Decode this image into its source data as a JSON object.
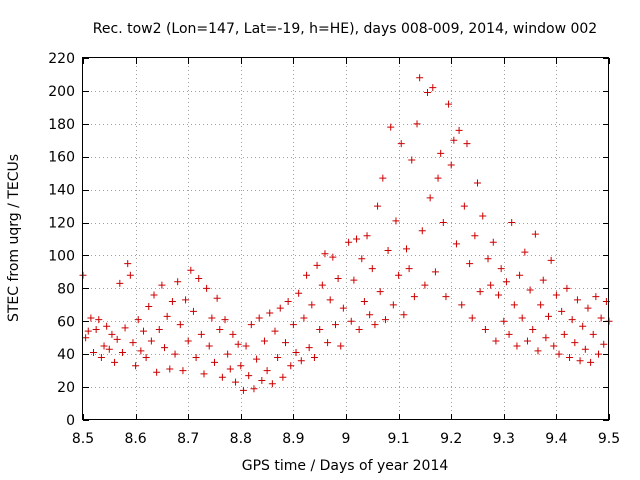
{
  "chart_data": {
    "type": "scatter",
    "title": "Rec. tow2 (Lon=147, Lat=-19, h=HE), days 008-009, 2014, window 002",
    "xlabel": "GPS time / Days of year 2014",
    "ylabel": "STEC from uqrg / TECUs",
    "xlim": [
      8.5,
      9.5
    ],
    "ylim": [
      0,
      220
    ],
    "xticks": [
      8.5,
      8.6,
      8.7,
      8.8,
      8.9,
      9,
      9.1,
      9.2,
      9.3,
      9.4,
      9.5
    ],
    "xtick_labels": [
      "8.5",
      "8.6",
      "8.7",
      "8.8",
      "8.9",
      "9",
      "9.1",
      "9.2",
      "9.3",
      "9.4",
      "9.5"
    ],
    "yticks": [
      0,
      20,
      40,
      60,
      80,
      100,
      120,
      140,
      160,
      180,
      200,
      220
    ],
    "ytick_labels": [
      "0",
      "20",
      "40",
      "60",
      "80",
      "100",
      "120",
      "140",
      "160",
      "180",
      "200",
      "220"
    ],
    "grid": true,
    "marker": "+",
    "color": "#cc0000",
    "series": [
      {
        "name": "stec",
        "points": [
          [
            8.5,
            88
          ],
          [
            8.505,
            50
          ],
          [
            8.51,
            54
          ],
          [
            8.515,
            62
          ],
          [
            8.52,
            41
          ],
          [
            8.525,
            55
          ],
          [
            8.53,
            61
          ],
          [
            8.535,
            38
          ],
          [
            8.54,
            45
          ],
          [
            8.545,
            57
          ],
          [
            8.55,
            43
          ],
          [
            8.555,
            52
          ],
          [
            8.56,
            35
          ],
          [
            8.565,
            49
          ],
          [
            8.57,
            83
          ],
          [
            8.575,
            41
          ],
          [
            8.58,
            56
          ],
          [
            8.585,
            95
          ],
          [
            8.59,
            88
          ],
          [
            8.595,
            47
          ],
          [
            8.6,
            33
          ],
          [
            8.605,
            61
          ],
          [
            8.61,
            42
          ],
          [
            8.615,
            54
          ],
          [
            8.62,
            38
          ],
          [
            8.625,
            69
          ],
          [
            8.63,
            48
          ],
          [
            8.635,
            76
          ],
          [
            8.64,
            29
          ],
          [
            8.645,
            55
          ],
          [
            8.65,
            82
          ],
          [
            8.655,
            44
          ],
          [
            8.66,
            63
          ],
          [
            8.665,
            31
          ],
          [
            8.67,
            72
          ],
          [
            8.675,
            40
          ],
          [
            8.68,
            84
          ],
          [
            8.685,
            58
          ],
          [
            8.69,
            30
          ],
          [
            8.695,
            73
          ],
          [
            8.7,
            48
          ],
          [
            8.705,
            91
          ],
          [
            8.71,
            66
          ],
          [
            8.715,
            38
          ],
          [
            8.72,
            86
          ],
          [
            8.725,
            52
          ],
          [
            8.73,
            28
          ],
          [
            8.735,
            80
          ],
          [
            8.74,
            45
          ],
          [
            8.745,
            62
          ],
          [
            8.75,
            35
          ],
          [
            8.755,
            74
          ],
          [
            8.76,
            55
          ],
          [
            8.765,
            26
          ],
          [
            8.77,
            61
          ],
          [
            8.775,
            40
          ],
          [
            8.78,
            31
          ],
          [
            8.785,
            52
          ],
          [
            8.79,
            23
          ],
          [
            8.795,
            46
          ],
          [
            8.8,
            33
          ],
          [
            8.805,
            18
          ],
          [
            8.81,
            45
          ],
          [
            8.815,
            27
          ],
          [
            8.82,
            58
          ],
          [
            8.825,
            19
          ],
          [
            8.83,
            37
          ],
          [
            8.835,
            62
          ],
          [
            8.84,
            24
          ],
          [
            8.845,
            48
          ],
          [
            8.85,
            30
          ],
          [
            8.855,
            65
          ],
          [
            8.86,
            22
          ],
          [
            8.865,
            54
          ],
          [
            8.87,
            38
          ],
          [
            8.875,
            68
          ],
          [
            8.88,
            26
          ],
          [
            8.885,
            47
          ],
          [
            8.89,
            72
          ],
          [
            8.895,
            33
          ],
          [
            8.9,
            58
          ],
          [
            8.905,
            41
          ],
          [
            8.91,
            77
          ],
          [
            8.915,
            36
          ],
          [
            8.92,
            62
          ],
          [
            8.925,
            88
          ],
          [
            8.93,
            44
          ],
          [
            8.935,
            70
          ],
          [
            8.94,
            38
          ],
          [
            8.945,
            94
          ],
          [
            8.95,
            55
          ],
          [
            8.955,
            82
          ],
          [
            8.96,
            101
          ],
          [
            8.965,
            47
          ],
          [
            8.97,
            73
          ],
          [
            8.975,
            99
          ],
          [
            8.98,
            58
          ],
          [
            8.985,
            86
          ],
          [
            8.99,
            45
          ],
          [
            8.995,
            68
          ],
          [
            9.005,
            108
          ],
          [
            9.01,
            60
          ],
          [
            9.015,
            85
          ],
          [
            9.02,
            110
          ],
          [
            9.025,
            55
          ],
          [
            9.03,
            98
          ],
          [
            9.035,
            72
          ],
          [
            9.04,
            112
          ],
          [
            9.045,
            64
          ],
          [
            9.05,
            92
          ],
          [
            9.055,
            58
          ],
          [
            9.06,
            130
          ],
          [
            9.065,
            78
          ],
          [
            9.07,
            147
          ],
          [
            9.075,
            61
          ],
          [
            9.08,
            103
          ],
          [
            9.085,
            178
          ],
          [
            9.09,
            70
          ],
          [
            9.095,
            121
          ],
          [
            9.1,
            88
          ],
          [
            9.105,
            168
          ],
          [
            9.11,
            64
          ],
          [
            9.115,
            104
          ],
          [
            9.12,
            92
          ],
          [
            9.125,
            158
          ],
          [
            9.13,
            75
          ],
          [
            9.135,
            180
          ],
          [
            9.14,
            208
          ],
          [
            9.145,
            115
          ],
          [
            9.15,
            82
          ],
          [
            9.155,
            199
          ],
          [
            9.16,
            135
          ],
          [
            9.165,
            202
          ],
          [
            9.17,
            90
          ],
          [
            9.175,
            147
          ],
          [
            9.18,
            162
          ],
          [
            9.185,
            120
          ],
          [
            9.19,
            75
          ],
          [
            9.195,
            192
          ],
          [
            9.2,
            155
          ],
          [
            9.205,
            170
          ],
          [
            9.21,
            107
          ],
          [
            9.215,
            176
          ],
          [
            9.22,
            70
          ],
          [
            9.225,
            130
          ],
          [
            9.23,
            168
          ],
          [
            9.235,
            95
          ],
          [
            9.24,
            62
          ],
          [
            9.245,
            112
          ],
          [
            9.25,
            144
          ],
          [
            9.255,
            78
          ],
          [
            9.26,
            124
          ],
          [
            9.265,
            55
          ],
          [
            9.27,
            98
          ],
          [
            9.275,
            82
          ],
          [
            9.28,
            108
          ],
          [
            9.285,
            48
          ],
          [
            9.29,
            76
          ],
          [
            9.295,
            92
          ],
          [
            9.3,
            60
          ],
          [
            9.305,
            84
          ],
          [
            9.31,
            52
          ],
          [
            9.315,
            120
          ],
          [
            9.32,
            70
          ],
          [
            9.325,
            45
          ],
          [
            9.33,
            88
          ],
          [
            9.335,
            62
          ],
          [
            9.34,
            102
          ],
          [
            9.345,
            48
          ],
          [
            9.35,
            79
          ],
          [
            9.355,
            55
          ],
          [
            9.36,
            113
          ],
          [
            9.365,
            42
          ],
          [
            9.37,
            70
          ],
          [
            9.375,
            85
          ],
          [
            9.38,
            50
          ],
          [
            9.385,
            63
          ],
          [
            9.39,
            97
          ],
          [
            9.395,
            45
          ],
          [
            9.4,
            76
          ],
          [
            9.405,
            40
          ],
          [
            9.41,
            66
          ],
          [
            9.415,
            52
          ],
          [
            9.42,
            80
          ],
          [
            9.425,
            38
          ],
          [
            9.43,
            61
          ],
          [
            9.435,
            47
          ],
          [
            9.44,
            73
          ],
          [
            9.445,
            36
          ],
          [
            9.45,
            57
          ],
          [
            9.455,
            43
          ],
          [
            9.46,
            68
          ],
          [
            9.465,
            35
          ],
          [
            9.47,
            52
          ],
          [
            9.475,
            75
          ],
          [
            9.48,
            40
          ],
          [
            9.485,
            62
          ],
          [
            9.49,
            46
          ],
          [
            9.495,
            72
          ],
          [
            9.5,
            60
          ]
        ]
      }
    ]
  }
}
